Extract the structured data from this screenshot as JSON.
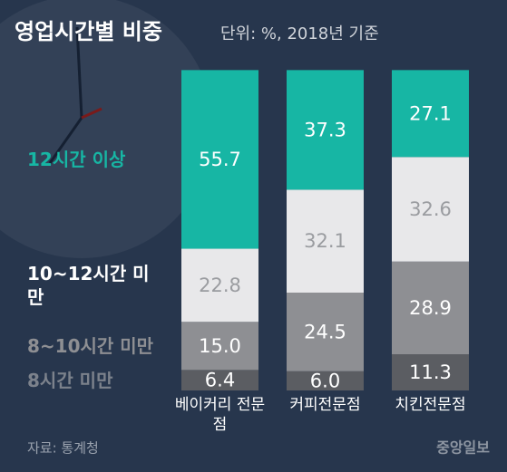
{
  "chart_data": {
    "type": "stacked-bar",
    "title": "영업시간별 비중",
    "subtitle": "단위: %, 2018년 기준",
    "source": "자료: 통계청",
    "logo": "중앙일보",
    "categories": [
      "베이커리 전문점",
      "커피전문점",
      "치킨전문점"
    ],
    "ylim": [
      0,
      100
    ],
    "series": [
      {
        "name": "8시간 미만",
        "color": "#5b5d62",
        "values": [
          6.4,
          6.0,
          11.3
        ],
        "value_labels": [
          "6.4",
          "6.0",
          "11.3"
        ]
      },
      {
        "name": "8~10시간 미만",
        "color": "#8e8f93",
        "values": [
          15.0,
          24.5,
          28.9
        ],
        "value_labels": [
          "15.0",
          "24.5",
          "28.9"
        ]
      },
      {
        "name": "10~12시간 미만",
        "color": "#e8e8ea",
        "values": [
          22.8,
          32.1,
          32.6
        ],
        "value_labels": [
          "22.8",
          "32.1",
          "32.6"
        ]
      },
      {
        "name": "12시간 이상",
        "color": "#17b6a4",
        "values": [
          55.7,
          37.3,
          27.1
        ],
        "value_labels": [
          "55.7",
          "37.3",
          "27.1"
        ]
      }
    ]
  }
}
